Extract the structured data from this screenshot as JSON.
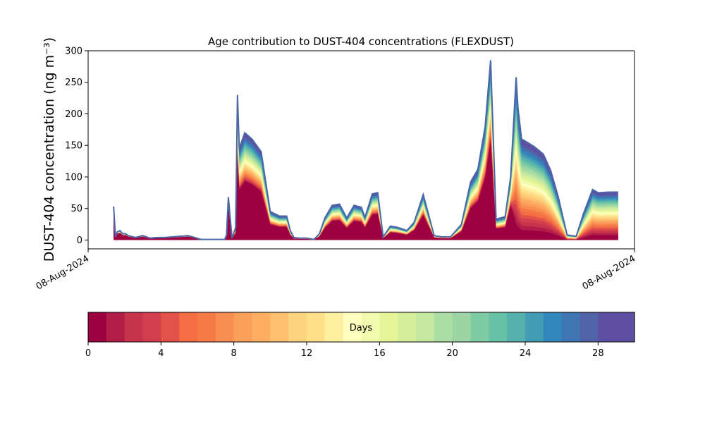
{
  "chart_data": {
    "type": "area",
    "stacked": true,
    "title": "Age contribution to DUST-404 concentrations (FLEXDUST)",
    "ylabel": "DUST-404 concentration (ng m⁻³)",
    "xlabel": "",
    "ylim": [
      -14,
      300
    ],
    "yticks": [
      0,
      50,
      100,
      150,
      200,
      250,
      300
    ],
    "xlim": [
      0,
      30
    ],
    "xticklabels": [
      "08-Aug-2024",
      "08-Aug-2024"
    ],
    "grid": false,
    "x": [
      1.4,
      1.5,
      1.6,
      1.75,
      1.9,
      2.05,
      2.2,
      2.6,
      3.0,
      3.4,
      3.8,
      4.2,
      5.5,
      6.2,
      6.8,
      7.5,
      7.6,
      7.7,
      7.9,
      8.1,
      8.2,
      8.3,
      8.6,
      9.0,
      9.5,
      10.0,
      10.5,
      10.9,
      11.1,
      11.3,
      11.6,
      12.0,
      12.4,
      12.7,
      13.0,
      13.4,
      13.8,
      14.2,
      14.6,
      15.0,
      15.2,
      15.6,
      15.9,
      16.2,
      16.6,
      17.0,
      17.5,
      17.9,
      18.4,
      19.0,
      19.4,
      19.9,
      20.5,
      21.0,
      21.4,
      21.8,
      22.1,
      22.4,
      22.9,
      23.2,
      23.5,
      23.6,
      23.8,
      24.1,
      24.5,
      25.0,
      25.4,
      25.8,
      26.3,
      26.8,
      27.2,
      27.7,
      28.0,
      28.6,
      28.9,
      29.1
    ],
    "total": [
      53,
      5,
      13,
      15,
      10,
      10,
      7,
      4,
      7,
      3,
      4,
      4,
      7,
      1,
      1,
      1,
      8,
      68,
      3,
      20,
      230,
      145,
      170,
      160,
      140,
      45,
      38,
      38,
      15,
      4,
      3,
      3,
      1,
      10,
      35,
      55,
      57,
      35,
      55,
      52,
      36,
      73,
      75,
      5,
      22,
      20,
      15,
      28,
      72,
      7,
      5,
      5,
      25,
      92,
      112,
      180,
      285,
      33,
      37,
      100,
      258,
      210,
      160,
      155,
      148,
      136,
      110,
      70,
      8,
      6,
      42,
      80,
      75,
      76,
      76,
      76
    ],
    "age_bands_days": [
      0,
      1,
      2,
      3,
      4,
      5,
      6,
      7,
      8,
      9,
      10,
      11,
      12,
      13,
      14,
      15,
      16,
      17,
      18,
      19,
      20,
      21,
      22,
      23,
      24,
      25,
      26,
      27,
      28,
      29
    ],
    "colorbar": {
      "label": "Days",
      "ticks": [
        0,
        4,
        8,
        12,
        16,
        20,
        24,
        28
      ],
      "colors": [
        "#9e0142",
        "#b31e48",
        "#c8344c",
        "#d53e4f",
        "#e25249",
        "#f46d43",
        "#f57a48",
        "#f98e52",
        "#fba05b",
        "#fdae61",
        "#fdc171",
        "#fed380",
        "#fee08b",
        "#fff0a0",
        "#ffffbf",
        "#f2faad",
        "#e6f598",
        "#d5ee9b",
        "#c5e8a0",
        "#abdda4",
        "#9bd5a4",
        "#7fcba4",
        "#66c2a5",
        "#56b0ad",
        "#439bb5",
        "#3288bd",
        "#4075b3",
        "#5062a8",
        "#5e4fa2",
        "#5e4fa2"
      ]
    }
  }
}
